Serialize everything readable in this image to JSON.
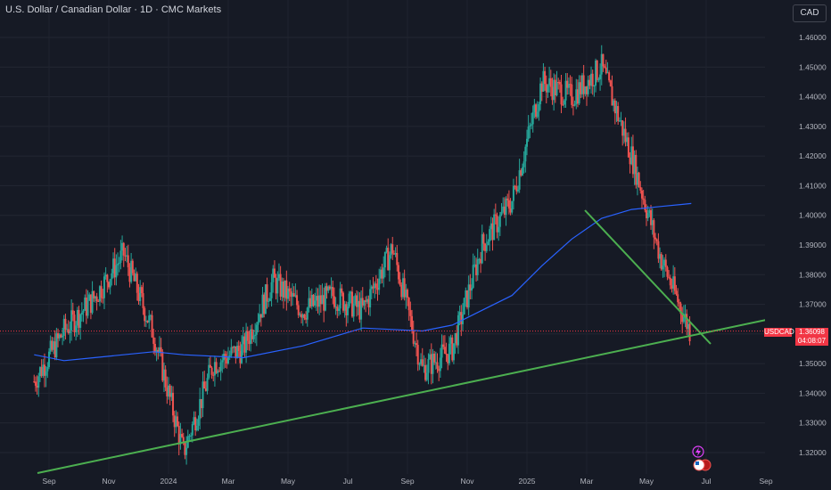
{
  "title": "U.S. Dollar / Canadian Dollar · 1D · CMC Markets",
  "currency_button": "CAD",
  "symbol_tag": "USDCAD",
  "last_price": "1.36098",
  "countdown": "04:08:07",
  "colors": {
    "background": "#161a25",
    "up": "#26a69a",
    "down": "#ef5350",
    "ma_line": "#2962ff",
    "trendline": "#4caf50",
    "price_line": "#f23645"
  },
  "icons": [
    "lightning-icon",
    "us-flag-icon"
  ],
  "chart_data": {
    "type": "line",
    "title": "",
    "xlabel": "",
    "ylabel": "",
    "ylim": [
      1.315,
      1.473
    ],
    "y_ticks": [
      "1.46000",
      "1.45000",
      "1.44000",
      "1.43000",
      "1.42000",
      "1.41000",
      "1.40000",
      "1.39000",
      "1.38000",
      "1.37000",
      "1.36000",
      "1.35000",
      "1.34000",
      "1.33000",
      "1.32000"
    ],
    "x_ticks": [
      "Sep",
      "Nov",
      "2024",
      "Mar",
      "May",
      "Jul",
      "Sep",
      "Nov",
      "2025",
      "Mar",
      "May",
      "Jul",
      "Sep"
    ],
    "series": [
      {
        "type": "line",
        "x": [
          "2023-08",
          "2023-09",
          "2023-10",
          "2023-11",
          "2023-12",
          "2024-01",
          "2024-02",
          "2024-03",
          "2024-04",
          "2024-05",
          "2024-06",
          "2024-07",
          "2024-08",
          "2024-09",
          "2024-10",
          "2024-11",
          "2024-12",
          "2025-01",
          "2025-02",
          "2025-03",
          "2025-04",
          "2025-05",
          "2025-06"
        ],
        "values": [
          1.344,
          1.361,
          1.372,
          1.387,
          1.36,
          1.32,
          1.35,
          1.355,
          1.378,
          1.368,
          1.373,
          1.368,
          1.389,
          1.348,
          1.355,
          1.39,
          1.405,
          1.445,
          1.44,
          1.45,
          1.42,
          1.385,
          1.36
        ]
      },
      {
        "type": "line",
        "x": [
          "2023-08",
          "2023-09",
          "2023-10",
          "2023-12",
          "2024-01",
          "2024-03",
          "2024-05",
          "2024-06",
          "2024-07",
          "2024-09",
          "2024-10",
          "2024-11",
          "2024-12",
          "2025-01",
          "2025-02",
          "2025-03",
          "2025-04",
          "2025-05",
          "2025-06"
        ],
        "values": [
          1.353,
          1.351,
          1.352,
          1.354,
          1.353,
          1.352,
          1.356,
          1.359,
          1.362,
          1.361,
          1.363,
          1.368,
          1.373,
          1.383,
          1.392,
          1.399,
          1.402,
          1.403,
          1.404
        ]
      }
    ]
  }
}
